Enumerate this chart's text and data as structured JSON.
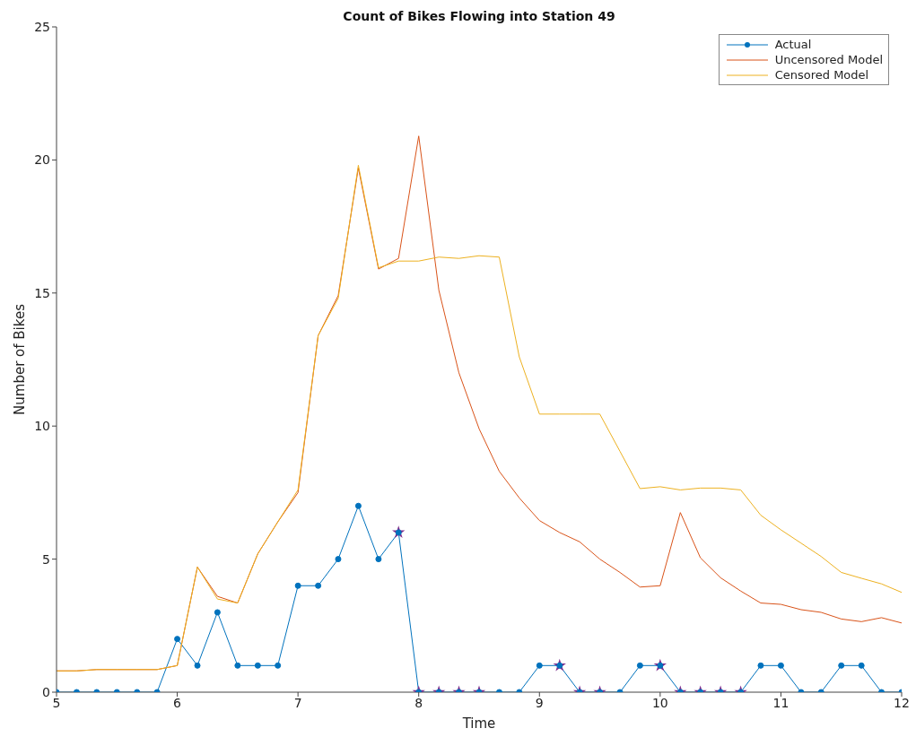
{
  "chart_data": {
    "type": "line",
    "title": "Count of Bikes Flowing into Station 49",
    "xlabel": "Time",
    "ylabel": "Number of Bikes",
    "x": [
      5,
      5.167,
      5.333,
      5.5,
      5.667,
      5.833,
      6,
      6.167,
      6.333,
      6.5,
      6.667,
      6.833,
      7,
      7.167,
      7.333,
      7.5,
      7.667,
      7.833,
      8,
      8.167,
      8.333,
      8.5,
      8.667,
      8.833,
      9,
      9.167,
      9.333,
      9.5,
      9.667,
      9.833,
      10,
      10.167,
      10.333,
      10.5,
      10.667,
      10.833,
      11,
      11.167,
      11.333,
      11.5,
      11.667,
      11.833,
      12
    ],
    "series": [
      {
        "name": "Actual",
        "color": "#0072bd",
        "marker": "circle",
        "values": [
          0,
          0,
          0,
          0,
          0,
          0,
          2,
          1,
          3,
          1,
          1,
          1,
          4,
          4,
          5,
          7,
          5,
          6,
          0,
          0,
          0,
          0,
          0,
          0,
          1,
          1,
          0,
          0,
          0,
          1,
          1,
          0,
          0,
          0,
          0,
          1,
          1,
          0,
          0,
          1,
          1,
          0,
          0
        ]
      },
      {
        "name": "Uncensored Model",
        "color": "#d95319",
        "marker": "none",
        "values": [
          0.8,
          0.8,
          0.85,
          0.85,
          0.85,
          0.85,
          1.0,
          4.7,
          3.6,
          3.35,
          5.2,
          6.4,
          7.5,
          13.4,
          14.9,
          19.7,
          15.9,
          16.3,
          20.9,
          15.1,
          12.0,
          9.9,
          8.3,
          7.3,
          6.45,
          6.0,
          5.65,
          5.0,
          4.5,
          3.95,
          4.0,
          6.75,
          5.05,
          4.3,
          3.8,
          3.35,
          3.3,
          3.1,
          3.0,
          2.75,
          2.65,
          2.8,
          2.6
        ]
      },
      {
        "name": "Censored Model",
        "color": "#edb120",
        "marker": "none",
        "values": [
          0.8,
          0.8,
          0.85,
          0.85,
          0.85,
          0.85,
          1.0,
          4.7,
          3.5,
          3.35,
          5.2,
          6.4,
          7.6,
          13.4,
          14.8,
          19.8,
          15.95,
          16.2,
          16.2,
          16.35,
          16.3,
          16.4,
          16.35,
          12.6,
          10.45,
          10.45,
          10.45,
          10.45,
          9.05,
          7.65,
          7.72,
          7.6,
          7.67,
          7.67,
          7.6,
          6.65,
          6.1,
          5.6,
          5.1,
          4.5,
          4.28,
          4.07,
          3.75
        ]
      },
      {
        "type": "scatter",
        "color": "#7e2f8e",
        "marker": "star",
        "x": [
          7.833,
          8,
          8.167,
          8.333,
          8.5,
          9.167,
          9.333,
          9.5,
          10,
          10.167,
          10.333,
          10.5,
          10.667
        ],
        "values": [
          6,
          0,
          0,
          0,
          0,
          1,
          0,
          0,
          1,
          0,
          0,
          0,
          0
        ]
      }
    ],
    "xlim": [
      5,
      12
    ],
    "xticks": [
      5,
      6,
      7,
      8,
      9,
      10,
      11,
      12
    ],
    "ylim": [
      0,
      25
    ],
    "yticks": [
      0,
      5,
      10,
      15,
      20,
      25
    ],
    "grid": false,
    "legend": "top right"
  }
}
